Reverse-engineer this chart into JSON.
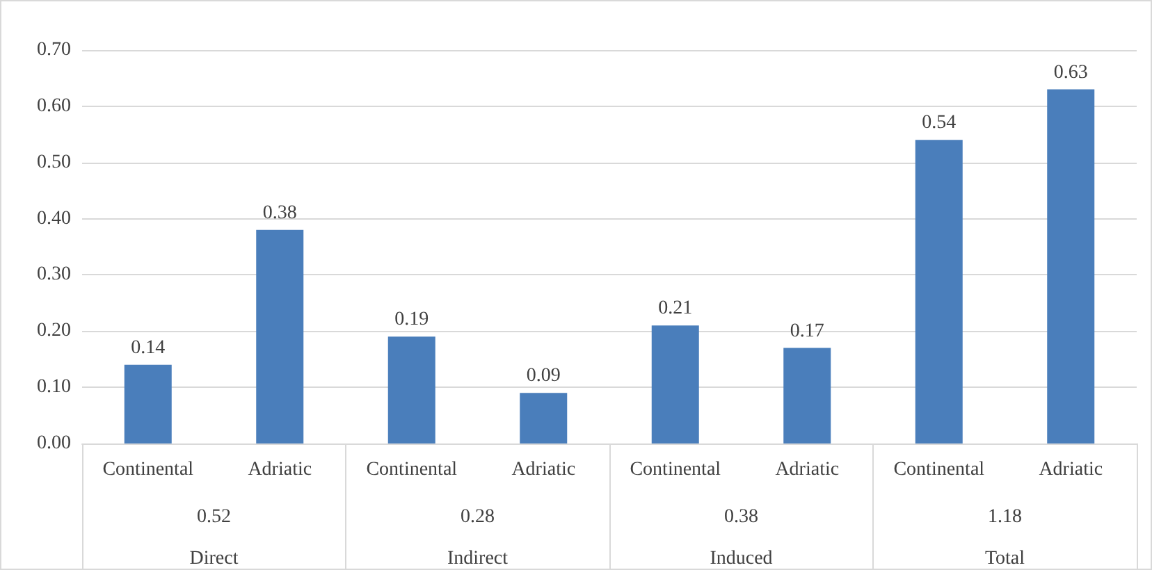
{
  "chart_data": {
    "type": "bar",
    "categories": [
      "Continental",
      "Adriatic",
      "Continental",
      "Adriatic",
      "Continental",
      "Adriatic",
      "Continental",
      "Adriatic"
    ],
    "values": [
      0.14,
      0.38,
      0.19,
      0.09,
      0.21,
      0.17,
      0.54,
      0.63
    ],
    "color": "#4a7ebb",
    "data_labels": true,
    "ylim": [
      0,
      0.7
    ],
    "yticks": [
      {
        "value": 0,
        "label": "0.00"
      },
      {
        "value": 0.1,
        "label": "0.10"
      },
      {
        "value": 0.2,
        "label": "0.20"
      },
      {
        "value": 0.3,
        "label": "0.30"
      },
      {
        "value": 0.4,
        "label": "0.40"
      },
      {
        "value": 0.5,
        "label": "0.50"
      },
      {
        "value": 0.6,
        "label": "0.60"
      },
      {
        "value": 0.7,
        "label": "0.70"
      }
    ],
    "grid": "y",
    "annotations": [
      "0.52",
      "0.28",
      "0.38",
      "1.18",
      "Direct",
      "Indirect",
      "Induced",
      "Total"
    ]
  }
}
